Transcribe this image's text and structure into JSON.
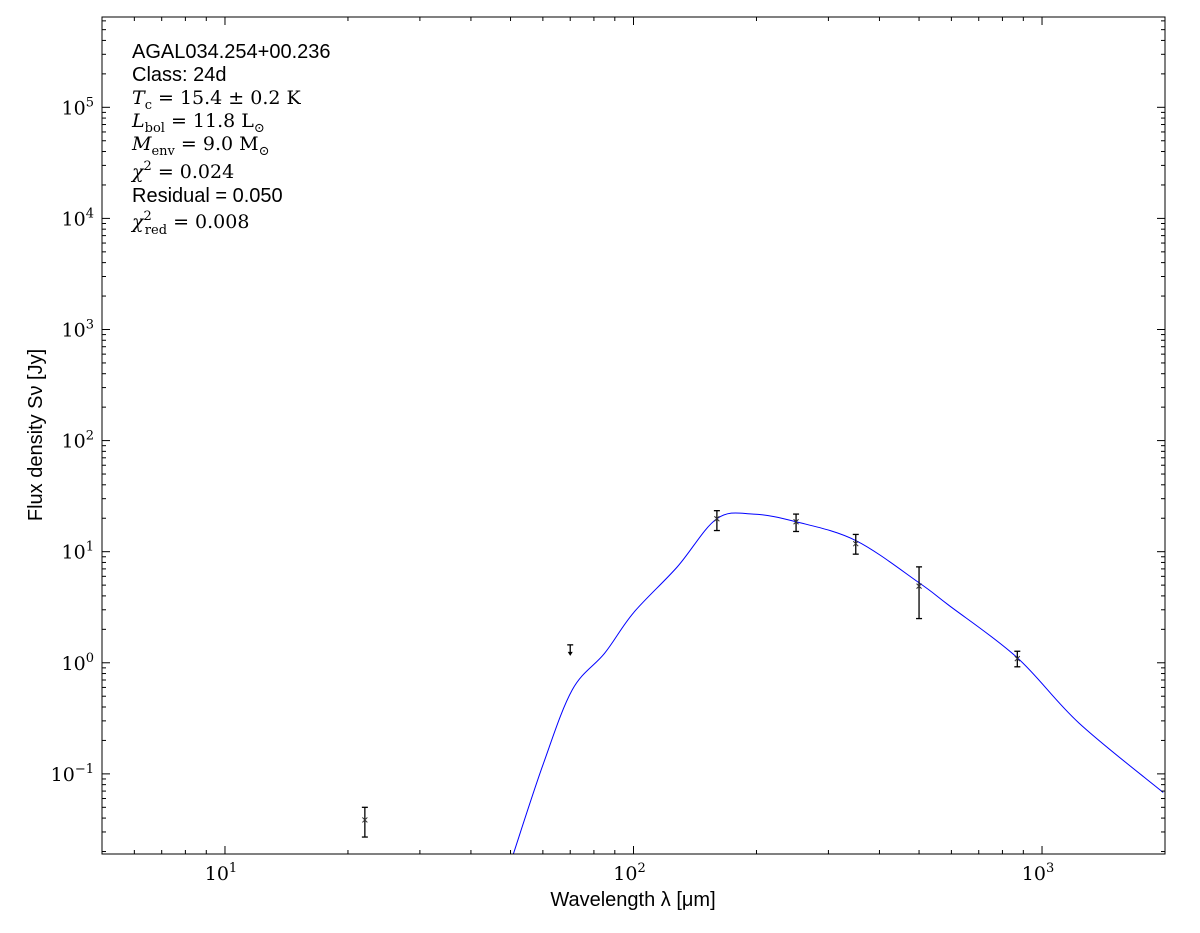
{
  "chart_data": {
    "type": "scatter",
    "xscale": "log",
    "yscale": "log",
    "xlim": [
      5,
      2000
    ],
    "ylim": [
      0.019,
      650000
    ],
    "grid": false,
    "xlabel": "Wavelength λ [μm]",
    "ylabel": "Flux density Sν [Jy]",
    "xticks": [
      {
        "value": 10,
        "label": "10",
        "exp": "1"
      },
      {
        "value": 100,
        "label": "10",
        "exp": "2"
      },
      {
        "value": 1000,
        "label": "10",
        "exp": "3"
      }
    ],
    "yticks": [
      {
        "value": 0.1,
        "label": "10",
        "exp": "−1"
      },
      {
        "value": 1,
        "label": "10",
        "exp": "0"
      },
      {
        "value": 10,
        "label": "10",
        "exp": "1"
      },
      {
        "value": 100,
        "label": "10",
        "exp": "2"
      },
      {
        "value": 1000,
        "label": "10",
        "exp": "3"
      },
      {
        "value": 10000,
        "label": "10",
        "exp": "4"
      },
      {
        "value": 100000,
        "label": "10",
        "exp": "5"
      }
    ],
    "annotations": [
      {
        "main": "AGAL034.254+00.236",
        "style": "sans"
      },
      {
        "main": "Class: 24d",
        "style": "sans"
      },
      {
        "main": "T",
        "sub": "c",
        "rest": " = 15.4 ± 0.2 K",
        "style": "math"
      },
      {
        "main": "L",
        "sub": "bol",
        "rest": " = 11.8 L",
        "rest_sub": "⊙",
        "style": "math"
      },
      {
        "main": "M",
        "sub": "env",
        "rest": " = 9.0 M",
        "rest_sub": "⊙",
        "style": "math"
      },
      {
        "main": "χ",
        "sup": "2",
        "rest": " = 0.024",
        "style": "math"
      },
      {
        "main": "Residual = 0.050",
        "style": "sans"
      },
      {
        "main": "χ",
        "sup": "2",
        "sub": "red",
        "rest": " = 0.008",
        "style": "math"
      }
    ],
    "points": [
      {
        "x": 22,
        "y": 0.0385,
        "yerr_low": 0.027,
        "yerr_high": 0.05
      },
      {
        "x": 70,
        "y": 1.45,
        "upper_limit": true
      },
      {
        "x": 160,
        "y": 19.8,
        "yerr_low": 15.5,
        "yerr_high": 23.4
      },
      {
        "x": 250,
        "y": 18.6,
        "yerr_low": 15.2,
        "yerr_high": 21.8
      },
      {
        "x": 350,
        "y": 11.8,
        "yerr_low": 9.5,
        "yerr_high": 14.3
      },
      {
        "x": 500,
        "y": 4.9,
        "yerr_low": 2.5,
        "yerr_high": 7.3
      },
      {
        "x": 870,
        "y": 1.09,
        "yerr_low": 0.92,
        "yerr_high": 1.27
      }
    ],
    "model_curve": {
      "color": "#0000ff",
      "x": [
        50.8,
        60,
        70.8,
        85,
        100,
        128,
        160,
        196.6,
        250,
        350,
        500,
        591,
        870,
        1230,
        1980
      ],
      "y": [
        0.019,
        0.12,
        0.57,
        1.22,
        2.82,
        7.3,
        19.8,
        21.8,
        18.6,
        12.6,
        5.25,
        3.3,
        1.11,
        0.288,
        0.068
      ]
    }
  }
}
